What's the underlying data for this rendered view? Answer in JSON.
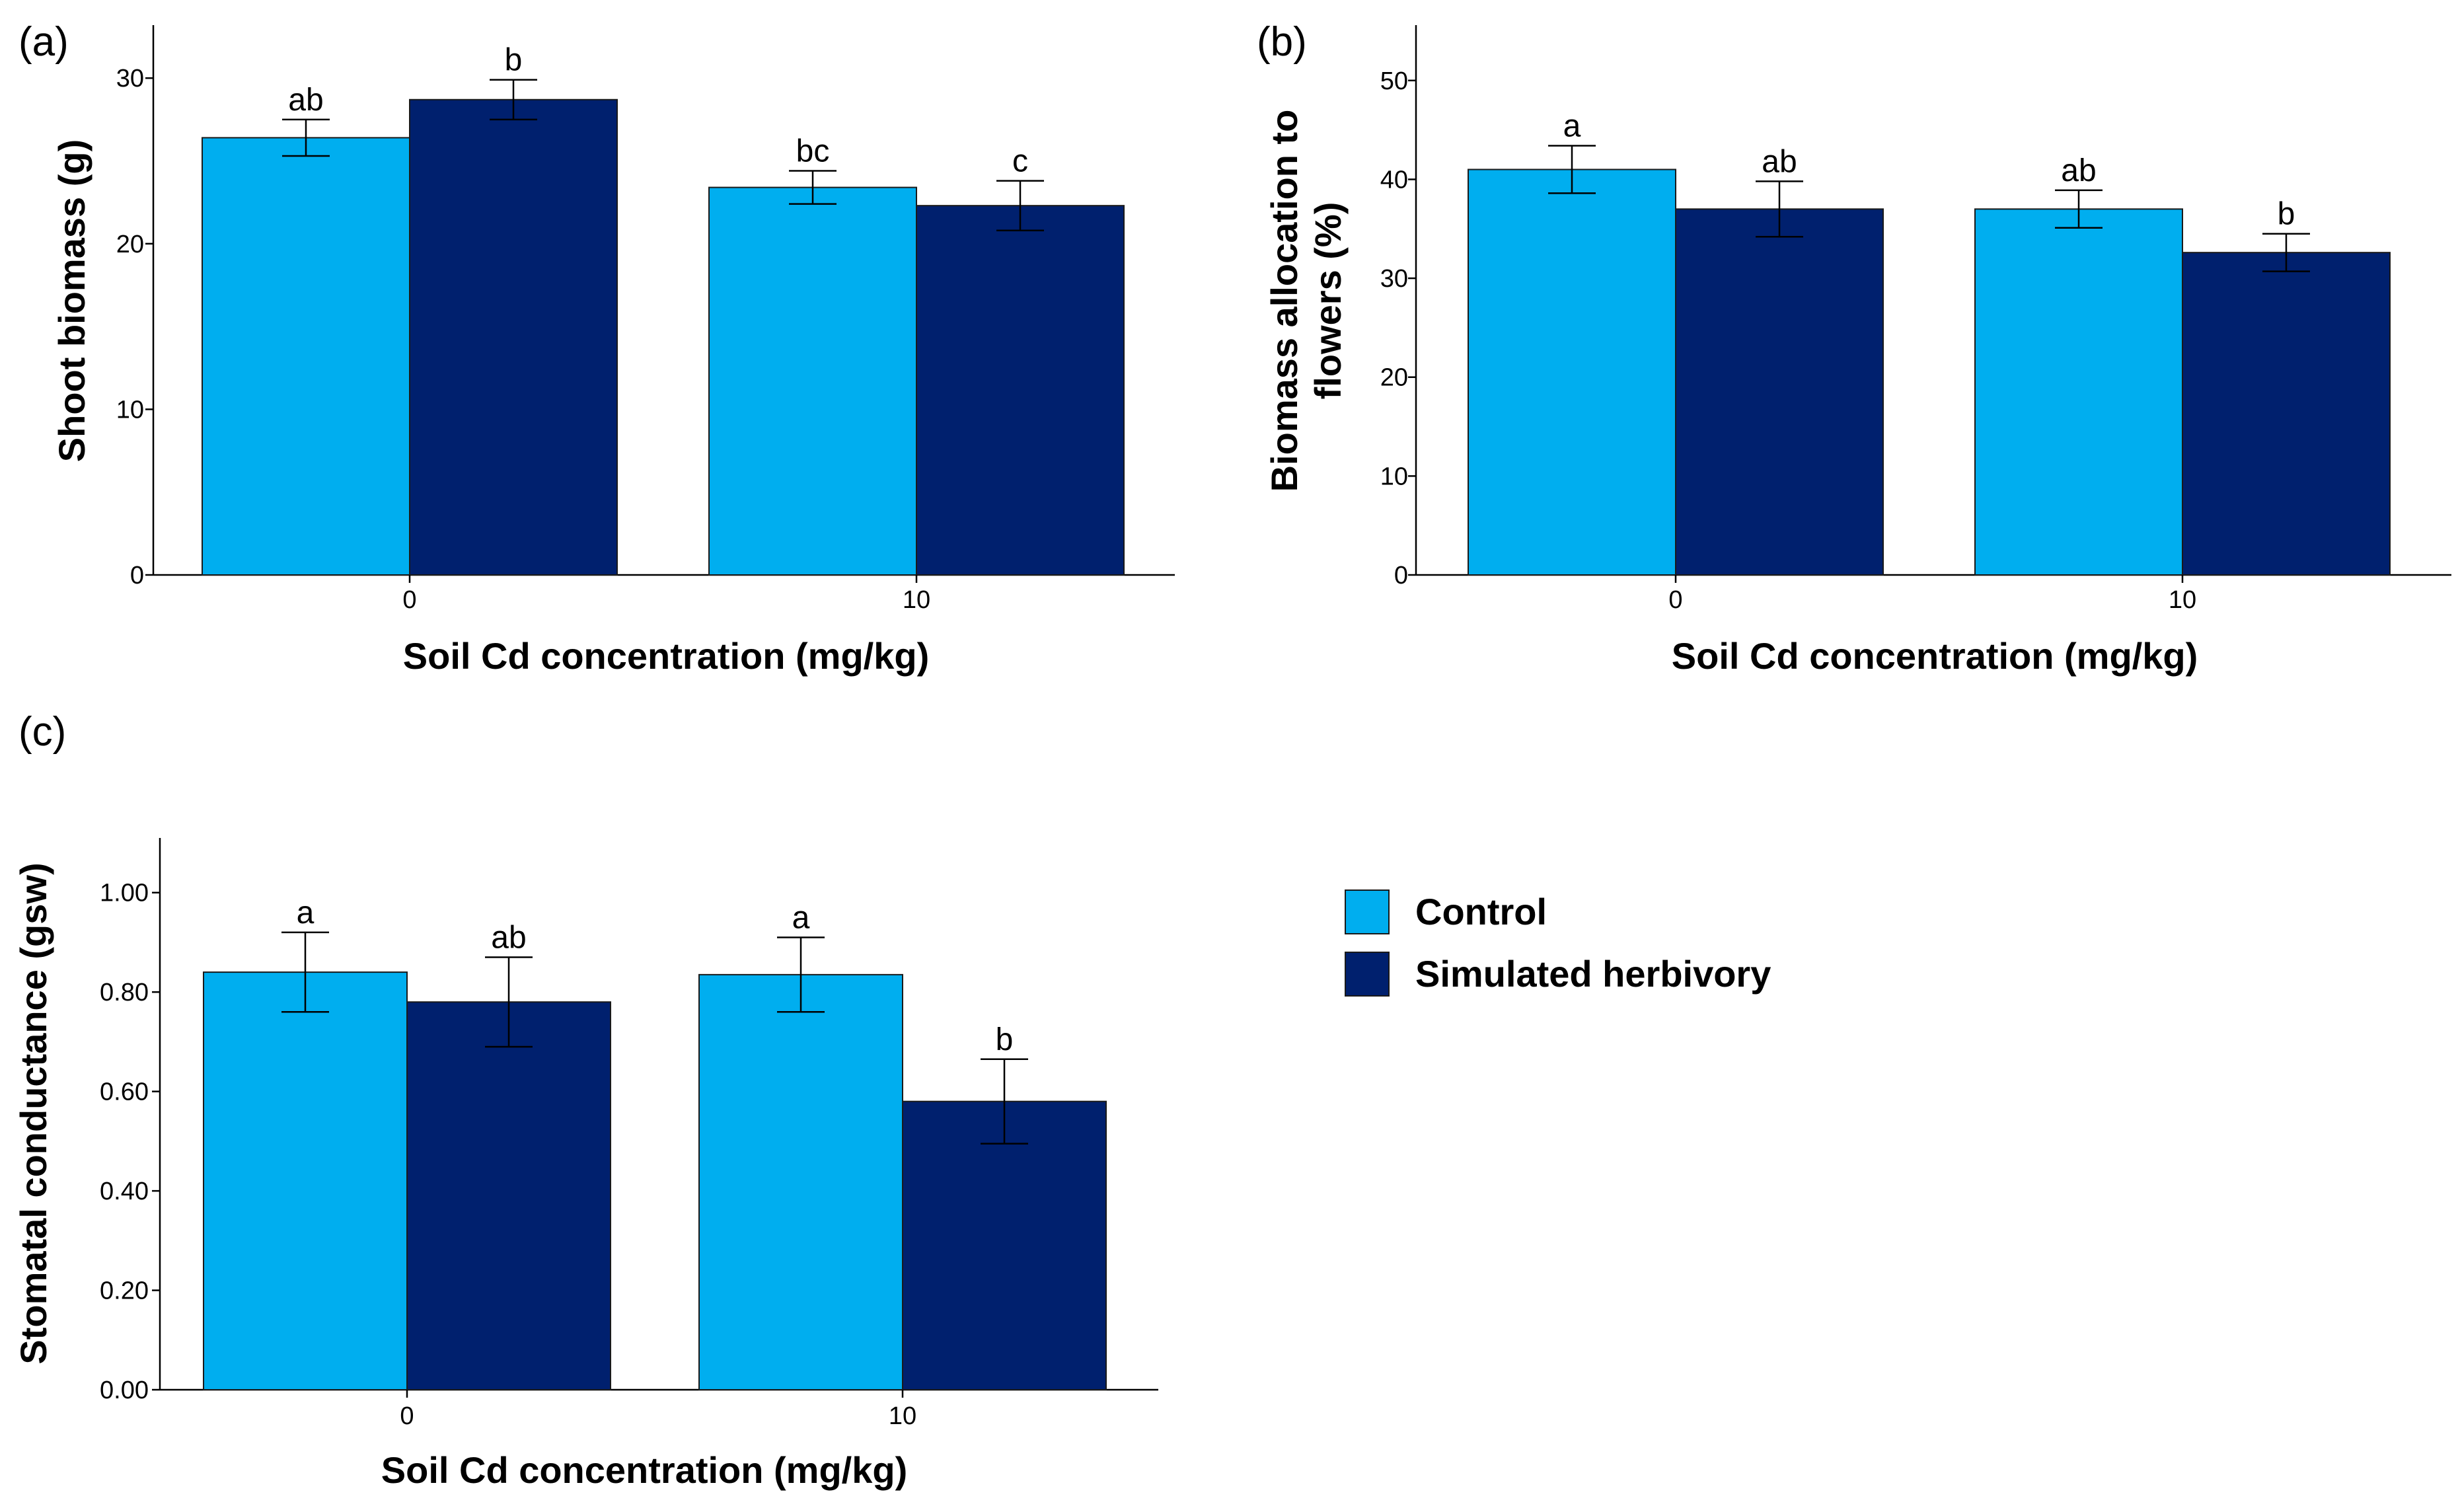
{
  "chart_data": [
    {
      "type": "bar",
      "panel": "(a)",
      "categories": [
        "0",
        "10"
      ],
      "series": [
        {
          "name": "Control",
          "values": [
            26.4,
            23.4
          ],
          "errors": [
            1.1,
            1.0
          ]
        },
        {
          "name": "Simulated herbivory",
          "values": [
            28.7,
            22.3
          ],
          "errors": [
            1.2,
            1.5
          ]
        }
      ],
      "letters": [
        [
          "ab",
          "bc"
        ],
        [
          "b",
          "c"
        ]
      ],
      "yticks": [
        "0",
        "10",
        "20",
        "30"
      ],
      "ylim": [
        0,
        33.2
      ],
      "xlabel": "Soil Cd concentration (mg/kg)",
      "ylabel": [
        "Shoot biomass (g)"
      ],
      "grid": false
    },
    {
      "type": "bar",
      "panel": "(b)",
      "categories": [
        "0",
        "10"
      ],
      "series": [
        {
          "name": "Control",
          "values": [
            41.0,
            37.0
          ],
          "errors": [
            2.4,
            1.9
          ]
        },
        {
          "name": "Simulated herbivory",
          "values": [
            37.0,
            32.6
          ],
          "errors": [
            2.8,
            1.9
          ]
        }
      ],
      "letters": [
        [
          "a",
          "ab"
        ],
        [
          "ab",
          "b"
        ]
      ],
      "yticks": [
        "0",
        "10",
        "20",
        "30",
        "40",
        "50"
      ],
      "ylim": [
        0,
        55.6
      ],
      "xlabel": "Soil Cd concentration (mg/kg)",
      "ylabel": [
        "Biomass allocation to",
        "flowers (%)"
      ],
      "grid": false
    },
    {
      "type": "bar",
      "panel": "(c)",
      "categories": [
        "0",
        "10"
      ],
      "series": [
        {
          "name": "Control",
          "values": [
            0.84,
            0.835
          ],
          "errors": [
            0.08,
            0.075
          ]
        },
        {
          "name": "Simulated herbivory",
          "values": [
            0.78,
            0.58
          ],
          "errors": [
            0.09,
            0.085
          ]
        }
      ],
      "letters": [
        [
          "a",
          "a"
        ],
        [
          "ab",
          "b"
        ]
      ],
      "yticks": [
        "0.00",
        "0.20",
        "0.40",
        "0.60",
        "0.80",
        "1.00"
      ],
      "ylim": [
        0,
        1.11
      ],
      "xlabel": "Soil Cd concentration (mg/kg)",
      "ylabel": [
        "Stomatal conductance (gsw)"
      ],
      "grid": false
    }
  ],
  "legend": {
    "items": [
      {
        "label": "Control",
        "color": "#00AEEF"
      },
      {
        "label": "Simulated herbivory",
        "color": "#00206E"
      }
    ]
  },
  "colors": {
    "control": "#00AEEF",
    "herbivory": "#00206E",
    "axis": "#000000"
  }
}
